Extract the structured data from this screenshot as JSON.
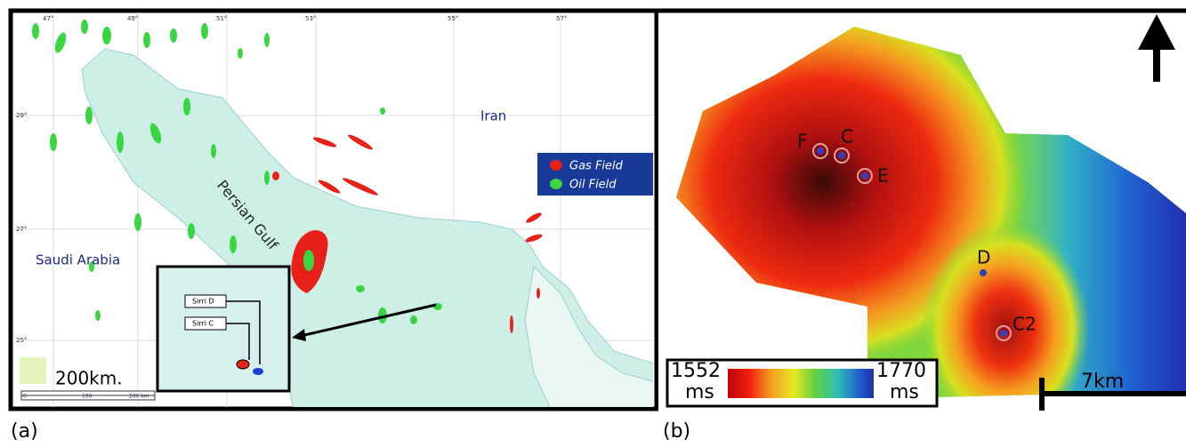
{
  "panel_a": {
    "label": "(a)",
    "places": {
      "iran": "Iran",
      "gulf": "Persian Gulf",
      "saudi": "Saudi Arabia"
    },
    "legend": [
      "Gas Field",
      "Oil Field"
    ],
    "scale": "200km.",
    "scale_bar": [
      "0",
      "100",
      "200 km"
    ],
    "longitudes": [
      "47°",
      "49°",
      "51°",
      "53°",
      "55°",
      "57°"
    ],
    "latitudes": [
      "29°",
      "27°",
      "25°"
    ],
    "inset": [
      "Sirri D",
      "Sirri C"
    ]
  },
  "panel_b": {
    "label": "(b)",
    "wells": [
      "F",
      "C",
      "E",
      "D",
      "C2"
    ],
    "colorbar": {
      "min": "1552",
      "min_unit": "ms",
      "max": "1770",
      "max_unit": "ms"
    },
    "scale": "7km"
  }
}
